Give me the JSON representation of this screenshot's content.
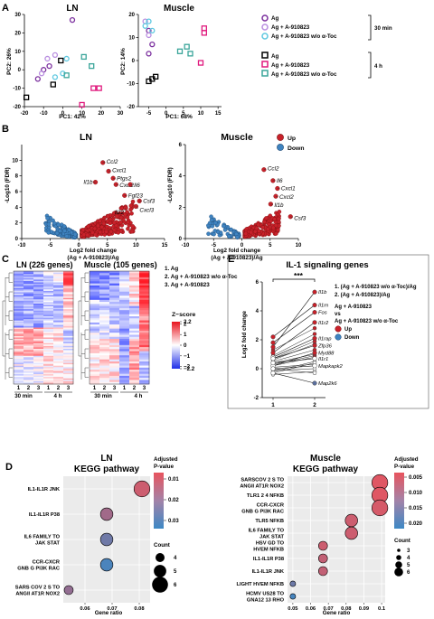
{
  "panel_letters": [
    "A",
    "B",
    "C",
    "D",
    "E"
  ],
  "colors": {
    "purple": "#7b2f9e",
    "lilac": "#b98ee0",
    "cyan": "#5ec8e0",
    "black": "#000000",
    "pink": "#e0197d",
    "teal": "#3aa59a",
    "up": "#c8212a",
    "down": "#3f83c0"
  },
  "A": {
    "ln": {
      "title": "LN",
      "xlabel": "PC1: 42%",
      "ylabel": "PC2: 26%"
    },
    "muscle": {
      "title": "Muscle",
      "xlabel": "PC1: 68%",
      "ylabel": "PC2: 14%"
    },
    "legend": {
      "items": [
        "Ag",
        "Ag + A-910823",
        "Ag + A-910823 w/o α-Toc",
        "Ag",
        "Ag + A-910823",
        "Ag + A-910823 w/o α-Toc"
      ],
      "time_30": "30 min",
      "time_4h": "4 h"
    }
  },
  "B": {
    "ln": {
      "title": "LN"
    },
    "muscle": {
      "title": "Muscle"
    },
    "ylabel": "-Log10 (FDR)",
    "xlabel_1": "Log2 fold change",
    "xlabel_2": "(Ag + A-910823)/Ag",
    "legend": {
      "up": "Up",
      "down": "Down"
    },
    "ln_genes": [
      "Ccl2",
      "Cxcl1",
      "Ptgs2",
      "Il1b",
      "Cxcl2",
      "Il6",
      "Fgf23",
      "Csf3",
      "Il22",
      "Cxcl3"
    ],
    "muscle_genes": [
      "Ccl2",
      "Il6",
      "Cxcl1",
      "Cxcl2",
      "Il1b",
      "Csf3"
    ]
  },
  "C": {
    "ln_title": "LN (226 genes)",
    "muscle_title": "Muscle (105 genes)",
    "groups": [
      "1. Ag",
      "2. Ag + A-910823 w/o α-Toc",
      "3. Ag + A-910823"
    ],
    "zscore": "Z−score",
    "time_30": "30 min",
    "time_4h": "4 h"
  },
  "E": {
    "title": "IL-1 signaling genes",
    "ylabel": "Log2 fold change",
    "sig": "***",
    "legend": [
      "1. (Ag + A-910823 w/o α-Toc)/Ag",
      "2. (Ag + A-910823)/Ag"
    ],
    "vs_1": "Ag + A-910823",
    "vs_2": "vs",
    "vs_3": "Ag + A-910823 w/o α-Toc",
    "up": "Up",
    "down": "Down",
    "genes": [
      "Il1b",
      "Il1rn",
      "Fos",
      "Il1r2",
      "Il1rap",
      "Zfp36",
      "Myd88",
      "Il1r1",
      "Mapkapk2",
      "Map2k6"
    ]
  },
  "D": {
    "ln": {
      "title_1": "LN",
      "title_2": "KEGG pathway",
      "xlabel": "Gene ratio",
      "pathways": [
        "IL1-IL1R JNK",
        "IL1-IL1R P38",
        "IL6 FAMILY TO JAK STAT",
        "CCR-CXCR GNB G PI3K RAC",
        "SARS COV 2 S TO ANGII AT1R NOX2"
      ]
    },
    "muscle": {
      "title_1": "Muscle",
      "title_2": "KEGG pathway",
      "xlabel": "Gene ratio",
      "pathways": [
        "SARSCOV 2 S TO ANGII AT1R NOX2",
        "TLR1 2 4 NFKB",
        "CCR-CXCR GNB G PI3K RAC",
        "TLR5 NFKB",
        "IL6 FAMILY TO JAK STAT",
        "HSV GD TO HVEM NFKB",
        "IL1-IL1R P38",
        "IL1-IL1R JNK",
        "LIGHT HVEM NFKB",
        "HCMV US28 TO GNA12 13 RHO"
      ]
    },
    "colorbar_title": [
      "Adjusted",
      "P-value"
    ],
    "count_title": "Count",
    "ln_cbar_ticks": [
      "0.01",
      "0.02",
      "0.03"
    ],
    "muscle_cbar_ticks": [
      "0.005",
      "0.010",
      "0.015",
      "0.020"
    ],
    "ln_counts": [
      "4",
      "5",
      "6"
    ],
    "muscle_counts": [
      "3",
      "4",
      "5",
      "6"
    ]
  },
  "chart_data": [
    {
      "id": "A_LN",
      "type": "scatter",
      "title": "LN",
      "xlabel": "PC1: 42%",
      "ylabel": "PC2: 26%",
      "xlim": [
        -20,
        30
      ],
      "ylim": [
        -20,
        30
      ],
      "x_ticks": [
        -20,
        -10,
        0,
        10,
        20,
        30
      ],
      "y_ticks": [
        -20,
        -10,
        0,
        10,
        20,
        30
      ],
      "series": [
        {
          "name": "Ag (30 min)",
          "color": "#7b2f9e",
          "marker": "circle",
          "points": [
            [
              -13,
              -5
            ],
            [
              -7,
              2
            ],
            [
              5,
              27
            ],
            [
              -10,
              0
            ]
          ]
        },
        {
          "name": "Ag + A-910823 (30 min)",
          "color": "#b98ee0",
          "marker": "circle",
          "points": [
            [
              -8,
              6
            ],
            [
              -4,
              8
            ],
            [
              -11,
              -2
            ]
          ]
        },
        {
          "name": "Ag + A-910823 w/o α-Toc (30 min)",
          "color": "#5ec8e0",
          "marker": "circle",
          "points": [
            [
              0,
              -2
            ],
            [
              -4,
              -4
            ],
            [
              2,
              6
            ]
          ]
        },
        {
          "name": "Ag (4 h)",
          "color": "#000000",
          "marker": "square",
          "points": [
            [
              -19,
              -15
            ],
            [
              -1,
              5
            ],
            [
              -5,
              -8
            ]
          ]
        },
        {
          "name": "Ag + A-910823 (4 h)",
          "color": "#e0197d",
          "marker": "square",
          "points": [
            [
              16,
              -10
            ],
            [
              19,
              -10
            ],
            [
              10,
              -19
            ]
          ]
        },
        {
          "name": "Ag + A-910823 w/o α-Toc (4 h)",
          "color": "#3aa59a",
          "marker": "square",
          "points": [
            [
              2,
              -3
            ],
            [
              11,
              7
            ],
            [
              15,
              2
            ]
          ]
        }
      ]
    },
    {
      "id": "A_Muscle",
      "type": "scatter",
      "title": "Muscle",
      "xlabel": "PC1: 68%",
      "ylabel": "PC2: 14%",
      "xlim": [
        -8,
        16
      ],
      "ylim": [
        -20,
        20
      ],
      "x_ticks": [
        -5,
        0,
        5,
        10,
        15
      ],
      "y_ticks": [
        -20,
        -10,
        0,
        10,
        20
      ],
      "series": [
        {
          "name": "Ag (30 min)",
          "color": "#7b2f9e",
          "marker": "circle",
          "points": [
            [
              -5,
              13
            ],
            [
              -4,
              7
            ],
            [
              -5,
              3
            ]
          ]
        },
        {
          "name": "Ag + A-910823 (30 min)",
          "color": "#b98ee0",
          "marker": "circle",
          "points": [
            [
              -6,
              17
            ],
            [
              -5,
              11
            ]
          ]
        },
        {
          "name": "Ag + A-910823 w/o α-Toc (30 min)",
          "color": "#5ec8e0",
          "marker": "circle",
          "points": [
            [
              -6,
              15
            ],
            [
              -5,
              17
            ],
            [
              -4,
              13
            ]
          ]
        },
        {
          "name": "Ag (4 h)",
          "color": "#000000",
          "marker": "square",
          "points": [
            [
              -4,
              -8
            ],
            [
              -3,
              -7
            ],
            [
              -5,
              -9
            ]
          ]
        },
        {
          "name": "Ag + A-910823 (4 h)",
          "color": "#e0197d",
          "marker": "square",
          "points": [
            [
              11,
              12
            ],
            [
              11,
              14
            ],
            [
              10,
              -1
            ]
          ]
        },
        {
          "name": "Ag + A-910823 w/o α-Toc (4 h)",
          "color": "#3aa59a",
          "marker": "square",
          "points": [
            [
              4,
              4
            ],
            [
              7,
              3
            ],
            [
              6,
              6
            ]
          ]
        }
      ]
    },
    {
      "id": "B_LN",
      "type": "scatter",
      "title": "LN",
      "xlim": [
        -10,
        15
      ],
      "ylim": [
        0,
        12
      ],
      "x_ticks": [
        -10,
        -5,
        0,
        5,
        10,
        15
      ],
      "y_ticks": [
        0,
        2,
        4,
        6,
        8,
        10
      ],
      "note": "volcano plot"
    },
    {
      "id": "B_Muscle",
      "type": "scatter",
      "title": "Muscle",
      "xlim": [
        -10,
        10
      ],
      "ylim": [
        0,
        6
      ],
      "x_ticks": [
        -10,
        -5,
        0,
        5,
        10
      ],
      "y_ticks": [
        0,
        2,
        4,
        6
      ],
      "note": "volcano plot"
    },
    {
      "id": "C",
      "type": "heatmap",
      "title": "LN (226 genes) / Muscle (105 genes)",
      "zlim": [
        -2.2,
        2.2
      ],
      "z_ticks": [
        2.2,
        2,
        1,
        0,
        -1,
        -2,
        -2.2
      ]
    },
    {
      "id": "D_LN",
      "type": "scatter",
      "title": "LN KEGG pathway",
      "xlabel": "Gene ratio",
      "x_ticks": [
        0.06,
        0.07,
        0.08
      ],
      "categories": [
        "IL1-IL1R JNK",
        "IL1-IL1R P38",
        "IL6 FAMILY TO JAK STAT",
        "CCR-CXCR GNB G PI3K RAC",
        "SARS COV 2 S TO ANGII AT1R NOX2"
      ],
      "gene_ratio": [
        0.081,
        0.068,
        0.068,
        0.068,
        0.054
      ],
      "count": [
        6,
        5,
        5,
        5,
        4
      ],
      "padj": [
        0.012,
        0.018,
        0.025,
        0.03,
        0.02
      ]
    },
    {
      "id": "D_Muscle",
      "type": "scatter",
      "title": "Muscle KEGG pathway",
      "xlabel": "Gene ratio",
      "x_ticks": [
        0.05,
        0.06,
        0.07,
        0.08,
        0.09,
        0.1
      ],
      "categories": [
        "SARSCOV 2 S TO ANGII AT1R NOX2",
        "TLR1 2 4 NFKB",
        "CCR-CXCR GNB G PI3K RAC",
        "TLR5 NFKB",
        "IL6 FAMILY TO JAK STAT",
        "HSV GD TO HVEM NFKB",
        "IL1-IL1R P38",
        "IL1-IL1R JNK",
        "LIGHT HVEM NFKB",
        "HCMV US28 TO GNA12 13 RHO"
      ],
      "gene_ratio": [
        0.099,
        0.099,
        0.099,
        0.083,
        0.083,
        0.067,
        0.067,
        0.067,
        0.05,
        0.05
      ],
      "count": [
        6,
        6,
        6,
        5,
        5,
        4,
        4,
        4,
        3,
        3
      ],
      "padj": [
        0.004,
        0.004,
        0.005,
        0.006,
        0.006,
        0.006,
        0.007,
        0.007,
        0.016,
        0.02
      ]
    },
    {
      "id": "E",
      "type": "line",
      "title": "IL-1 signaling genes",
      "ylabel": "Log2 fold change",
      "categories": [
        "1",
        "2"
      ],
      "ylim": [
        -2,
        6
      ],
      "y_ticks": [
        -2,
        0,
        2,
        4,
        6
      ],
      "series": [
        {
          "name": "Il1b",
          "values": [
            1.5,
            5.3
          ]
        },
        {
          "name": "Il1rn",
          "values": [
            2.2,
            4.4
          ]
        },
        {
          "name": "Fos",
          "values": [
            1.8,
            3.9
          ]
        },
        {
          "name": "Il1r2",
          "values": [
            1.1,
            3.2
          ]
        },
        {
          "name": "Il1rap",
          "values": [
            0.8,
            2.1
          ]
        },
        {
          "name": "Zfp36",
          "values": [
            0.7,
            1.6
          ]
        },
        {
          "name": "Myd88",
          "values": [
            0.2,
            1.1
          ]
        },
        {
          "name": "Il1r1",
          "values": [
            0.4,
            0.7
          ]
        },
        {
          "name": "Mapkapk2",
          "values": [
            0.0,
            0.2
          ]
        },
        {
          "name": "Map2k6",
          "values": [
            -0.3,
            -1.0
          ]
        }
      ]
    }
  ]
}
